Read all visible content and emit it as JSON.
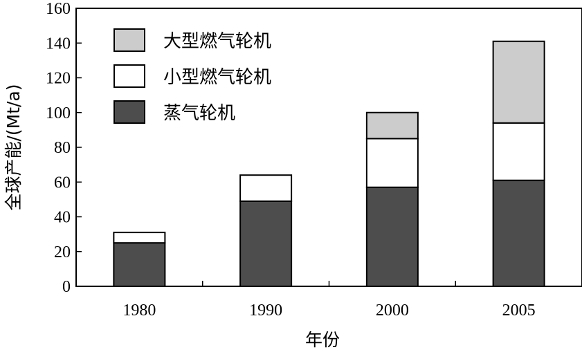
{
  "chart_data": {
    "type": "bar",
    "stacked": true,
    "categories": [
      "1980",
      "1990",
      "2000",
      "2005"
    ],
    "series": [
      {
        "name": "蒸气轮机",
        "values": [
          25,
          49,
          57,
          61
        ],
        "color": "#4d4d4d"
      },
      {
        "name": "小型燃气轮机",
        "values": [
          6,
          15,
          28,
          33
        ],
        "color": "#ffffff"
      },
      {
        "name": "大型燃气轮机",
        "values": [
          0,
          0,
          15,
          47
        ],
        "color": "#cccccc"
      }
    ],
    "legend_order": [
      2,
      1,
      0
    ],
    "xlabel": "年份",
    "ylabel": "全球产能/(Mt/a)",
    "ylim": [
      0,
      160
    ],
    "yticks": [
      0,
      20,
      40,
      60,
      80,
      100,
      120,
      140,
      160
    ],
    "grid": false,
    "legend_position": "top-left"
  }
}
